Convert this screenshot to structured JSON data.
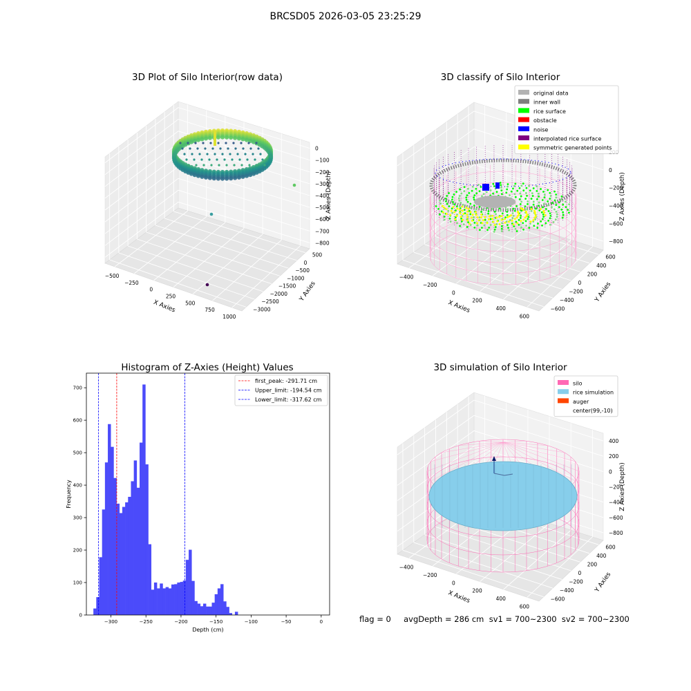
{
  "figure": {
    "suptitle": "BRCSD05 2026-03-05 23:25:29",
    "footer": "flag = 0     avgDepth = 286 cm  sv1 = 700~2300  sv2 = 700~2300"
  },
  "chart_data": [
    {
      "type": "scatter",
      "projection": "3d",
      "title": "3D Plot of Silo Interior(row data)",
      "xlabel": "X Axies",
      "ylabel": "Y Axies",
      "zlabel": "Z Axies (Depth)",
      "x_ticks": [
        "−500",
        "−250",
        "0",
        "250",
        "500",
        "750",
        "1000"
      ],
      "y_ticks": [
        "500",
        "0",
        "−500",
        "−1000",
        "−1500",
        "−2000",
        "−2500",
        "−3000"
      ],
      "z_ticks": [
        "0",
        "−100",
        "−200",
        "−300",
        "−400",
        "−500",
        "−600",
        "−700",
        "−800"
      ],
      "xlim": [
        -600,
        1000
      ],
      "ylim": [
        -3000,
        600
      ],
      "zlim": [
        -850,
        0
      ],
      "colormap": "viridis",
      "outliers": [
        {
          "x": 980,
          "y": -450,
          "z": -380,
          "color": "#5ec962"
        },
        {
          "x": 100,
          "y": -2000,
          "z": -720,
          "color": "#3b9ea0"
        },
        {
          "x": 700,
          "y": -2900,
          "z": -850,
          "color": "#440154"
        }
      ]
    },
    {
      "type": "scatter",
      "projection": "3d",
      "title": "3D classify of Silo Interior",
      "xlabel": "X Axies",
      "ylabel": "Y Axies",
      "zlabel": "Z Axies (Depth)",
      "x_ticks": [
        "−400",
        "−200",
        "0",
        "200",
        "400",
        "600"
      ],
      "y_ticks": [
        "600",
        "400",
        "200",
        "0",
        "−200",
        "−400",
        "−600"
      ],
      "z_ticks": [
        "200",
        "0",
        "−200",
        "−400",
        "−600",
        "−800"
      ],
      "legend_position": "top-right",
      "legend": [
        {
          "label": "original data",
          "color": "#b3b3b3"
        },
        {
          "label": "inner wall",
          "color": "#7f7f7f"
        },
        {
          "label": "rice surface",
          "color": "#00ff00"
        },
        {
          "label": "obstacle",
          "color": "#ff0000"
        },
        {
          "label": "noise",
          "color": "#0000ff"
        },
        {
          "label": "interpolated rice surface",
          "color": "#800080"
        },
        {
          "label": "symmetric generated points",
          "color": "#ffff00"
        }
      ]
    },
    {
      "type": "bar",
      "title": "Histogram of Z-Axies (Height) Values",
      "xlabel": "Depth (cm)",
      "ylabel": "Frequency",
      "bar_color": "#4b4bfa",
      "bin_start": -325,
      "bin_width": 4.12,
      "values": [
        20,
        55,
        178,
        325,
        470,
        588,
        518,
        422,
        343,
        314,
        333,
        347,
        364,
        412,
        476,
        392,
        531,
        710,
        464,
        218,
        78,
        100,
        82,
        97,
        82,
        86,
        82,
        94,
        95,
        100,
        102,
        106,
        170,
        201,
        105,
        43,
        35,
        27,
        35,
        26,
        26,
        38,
        64,
        82,
        95,
        42,
        25,
        6,
        0,
        10
      ],
      "xlim": [
        -335,
        12
      ],
      "ylim": [
        0,
        745
      ],
      "x_ticks": [
        -300,
        -250,
        -200,
        -150,
        -100,
        -50,
        0
      ],
      "y_ticks": [
        0,
        100,
        200,
        300,
        400,
        500,
        600,
        700
      ],
      "vlines": [
        {
          "x": -291.71,
          "color": "#ff0000",
          "label": "first_peak: -291.71 cm"
        },
        {
          "x": -194.54,
          "color": "#0000ff",
          "label": "Upper_limit: -194.54 cm"
        },
        {
          "x": -317.62,
          "color": "#0000ff",
          "label": "Lower_limit: -317.62 cm"
        }
      ],
      "legend_position": "top-right"
    },
    {
      "type": "scatter",
      "projection": "3d",
      "title": "3D simulation of Silo Interior",
      "xlabel": "X Axies",
      "ylabel": "Y Axies",
      "zlabel": "Z Axies (Depth)",
      "x_ticks": [
        "−400",
        "−200",
        "0",
        "200",
        "400",
        "600"
      ],
      "y_ticks": [
        "600",
        "400",
        "200",
        "0",
        "−200",
        "−400",
        "−600"
      ],
      "z_ticks": [
        "400",
        "200",
        "0",
        "−200",
        "−400",
        "−600",
        "−800"
      ],
      "legend_position": "top-right",
      "legend": [
        {
          "label": "silo",
          "color": "#ff69b4"
        },
        {
          "label": "rice simulation",
          "color": "#87ceeb"
        },
        {
          "label": "auger",
          "color": "#ff4500"
        },
        {
          "label": "center(99,-10)",
          "color": "#ffffff"
        }
      ]
    }
  ]
}
